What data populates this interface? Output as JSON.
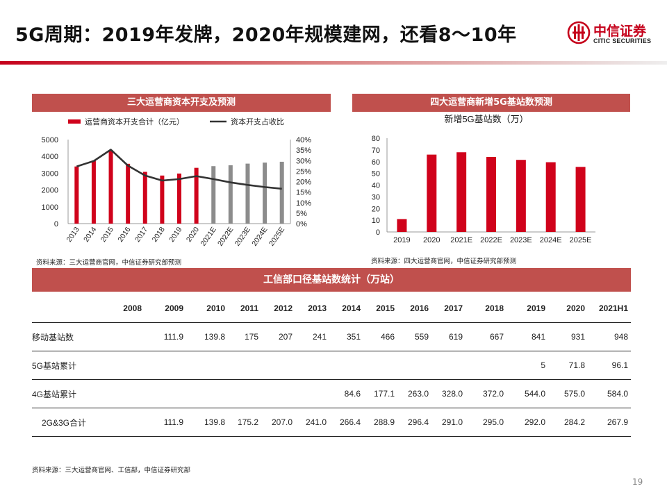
{
  "header": {
    "title": "5G周期：2019年发牌，2020年规模建网，还看8～10年",
    "logo_zh": "中信证券",
    "logo_en": "CITIC SECURITIES",
    "accent": "#c5001a"
  },
  "chart1": {
    "band_title": "三大运营商资本开支及预测",
    "legend_bar": "运营商资本开支合计（亿元）",
    "legend_line": "资本开支占收比",
    "source": "资料来源：三大运营商官网，中信证券研究部预测"
  },
  "chart2": {
    "band_title": "四大运营商新增5G基站数预测",
    "title": "新增5G基站数（万）",
    "source": "资料来源：四大运营商官网，中信证券研究部预测"
  },
  "table": {
    "band_title": "工信部口径基站数统计（万站）",
    "headers": [
      "",
      "2008",
      "2009",
      "2010",
      "2011",
      "2012",
      "2013",
      "2014",
      "2015",
      "2016",
      "2017",
      "2018",
      "2019",
      "2020",
      "2021H1"
    ],
    "rows": [
      [
        "移动基站数",
        "",
        "111.9",
        "139.8",
        "175",
        "207",
        "241",
        "351",
        "466",
        "559",
        "619",
        "667",
        "841",
        "931",
        "948"
      ],
      [
        "5G基站累计",
        "",
        "",
        "",
        "",
        "",
        "",
        "",
        "",
        "",
        "",
        "",
        "5",
        "71.8",
        "96.1"
      ],
      [
        "4G基站累计",
        "",
        "",
        "",
        "",
        "",
        "",
        "84.6",
        "177.1",
        "263.0",
        "328.0",
        "372.0",
        "544.0",
        "575.0",
        "584.0"
      ],
      [
        "2G&3G合计",
        "",
        "111.9",
        "139.8",
        "175.2",
        "207.0",
        "241.0",
        "266.4",
        "288.9",
        "296.4",
        "291.0",
        "295.0",
        "292.0",
        "284.2",
        "267.9"
      ]
    ]
  },
  "footer": {
    "source": "资料来源：三大运营商官网、工信部，中信证券研究部",
    "page": "19"
  },
  "chart_data": [
    {
      "type": "bar",
      "categories": [
        "2013",
        "2014",
        "2015",
        "2016",
        "2017",
        "2018",
        "2019",
        "2020",
        "2021E",
        "2022E",
        "2023E",
        "2024E",
        "2025E"
      ],
      "series": [
        {
          "name": "运营商资本开支合计（亿元）",
          "type": "bar",
          "values": [
            3400,
            3750,
            4380,
            3560,
            3080,
            2860,
            2980,
            3320,
            3420,
            3470,
            3570,
            3630,
            3680
          ],
          "colors": [
            "#d0021b",
            "#d0021b",
            "#d0021b",
            "#d0021b",
            "#d0021b",
            "#d0021b",
            "#d0021b",
            "#d0021b",
            "#8c8c8c",
            "#8c8c8c",
            "#8c8c8c",
            "#8c8c8c",
            "#8c8c8c"
          ]
        },
        {
          "name": "资本开支占收比",
          "type": "line",
          "axis": "right",
          "color": "#333333",
          "values": [
            27.2,
            29.8,
            35.2,
            27.6,
            22.9,
            20.5,
            21.2,
            22.6,
            21.2,
            19.6,
            18.4,
            17.4,
            16.6
          ]
        }
      ],
      "y_ticks": [
        "0",
        "1000",
        "2000",
        "3000",
        "4000",
        "5000"
      ],
      "ylim": [
        0,
        5000
      ],
      "y2_ticks": [
        "0%",
        "5%",
        "10%",
        "15%",
        "20%",
        "25%",
        "30%",
        "35%",
        "40%"
      ],
      "y2lim": [
        0,
        40
      ],
      "legend": "top-left",
      "grid": false
    },
    {
      "type": "bar",
      "categories": [
        "2019",
        "2020",
        "2021E",
        "2022E",
        "2023E",
        "2024E",
        "2025E"
      ],
      "values": [
        11,
        66,
        68,
        64,
        61.5,
        59.5,
        55.5
      ],
      "color": "#d0021b",
      "y_ticks": [
        "0",
        "10",
        "20",
        "30",
        "40",
        "50",
        "60",
        "70",
        "80"
      ],
      "ylim": [
        0,
        80
      ],
      "title": "新增5G基站数（万）",
      "grid": false
    }
  ]
}
